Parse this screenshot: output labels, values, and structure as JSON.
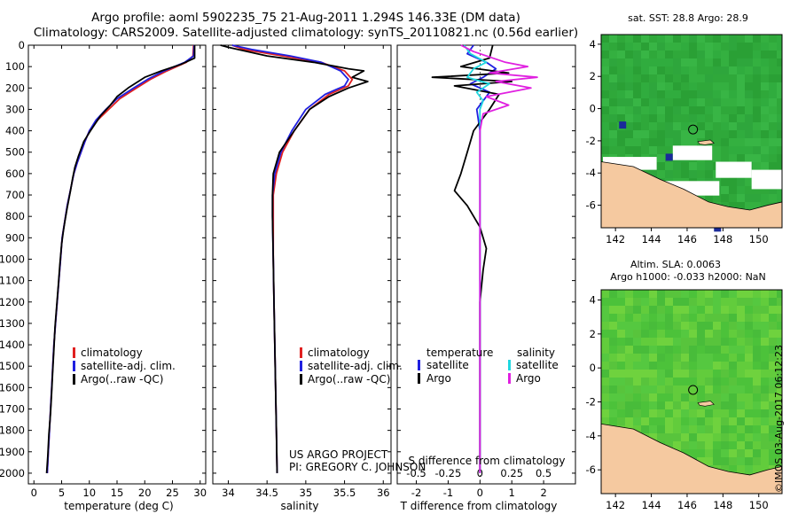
{
  "header": {
    "line1": "Argo profile: aoml 5902235_75 21-Aug-2011 1.294S 146.33E (DM data)",
    "line2": "Climatology: CARS2009. Satellite-adjusted climatology: synTS_20110821.nc (0.56d earlier)"
  },
  "colors": {
    "climatology": "#e02020",
    "satellite": "#2020e0",
    "argo": "#000000",
    "salinity_satellite": "#20d8e0",
    "salinity_argo": "#e020e0",
    "land": "#f5c9a0",
    "sea_green": "#2fb02f",
    "missing": "#ffffff"
  },
  "depth_axis": {
    "ticks": [
      0,
      100,
      200,
      300,
      400,
      500,
      600,
      700,
      800,
      900,
      1000,
      1100,
      1200,
      1300,
      1400,
      1500,
      1600,
      1700,
      1800,
      1900,
      2000
    ]
  },
  "chart_data": [
    {
      "type": "line",
      "name": "temperature",
      "xlabel": "temperature (deg C)",
      "xlim": [
        -1,
        31
      ],
      "ylim": [
        0,
        2050
      ],
      "xticks": [
        0,
        5,
        10,
        15,
        20,
        25,
        30
      ],
      "legend": [
        "climatology",
        "satellite-adj. clim.",
        "Argo(..raw -QC)"
      ],
      "series": [
        {
          "name": "climatology",
          "color": "#e02020",
          "points": [
            [
              28.8,
              0
            ],
            [
              28.7,
              50
            ],
            [
              27.5,
              80
            ],
            [
              24.0,
              120
            ],
            [
              21.0,
              160
            ],
            [
              18.5,
              200
            ],
            [
              15.5,
              250
            ],
            [
              13.5,
              300
            ],
            [
              11.5,
              350
            ],
            [
              10.0,
              400
            ],
            [
              9.2,
              450
            ],
            [
              8.5,
              500
            ],
            [
              7.8,
              550
            ],
            [
              7.2,
              600
            ],
            [
              6.8,
              650
            ],
            [
              6.4,
              700
            ],
            [
              6.0,
              750
            ],
            [
              5.7,
              800
            ],
            [
              5.4,
              850
            ],
            [
              5.1,
              900
            ],
            [
              4.8,
              1000
            ],
            [
              4.5,
              1100
            ],
            [
              4.2,
              1200
            ],
            [
              3.9,
              1300
            ],
            [
              3.6,
              1400
            ],
            [
              3.4,
              1500
            ],
            [
              3.2,
              1600
            ],
            [
              3.0,
              1700
            ],
            [
              2.8,
              1800
            ],
            [
              2.6,
              1900
            ],
            [
              2.4,
              2000
            ]
          ]
        },
        {
          "name": "satellite",
          "color": "#2020e0",
          "points": [
            [
              28.9,
              0
            ],
            [
              28.8,
              50
            ],
            [
              27.2,
              80
            ],
            [
              23.5,
              120
            ],
            [
              20.5,
              160
            ],
            [
              18.0,
              200
            ],
            [
              15.0,
              250
            ],
            [
              13.0,
              300
            ],
            [
              11.2,
              350
            ],
            [
              10.0,
              400
            ],
            [
              9.2,
              450
            ],
            [
              8.5,
              500
            ],
            [
              7.8,
              550
            ],
            [
              7.2,
              600
            ],
            [
              6.8,
              650
            ],
            [
              6.4,
              700
            ],
            [
              6.0,
              750
            ],
            [
              5.7,
              800
            ],
            [
              5.4,
              850
            ],
            [
              5.1,
              900
            ],
            [
              4.8,
              1000
            ],
            [
              4.5,
              1100
            ],
            [
              4.2,
              1200
            ],
            [
              3.9,
              1300
            ],
            [
              3.6,
              1400
            ],
            [
              3.4,
              1500
            ],
            [
              3.2,
              1600
            ],
            [
              3.0,
              1700
            ],
            [
              2.8,
              1800
            ],
            [
              2.6,
              1900
            ],
            [
              2.4,
              2000
            ]
          ]
        },
        {
          "name": "Argo",
          "color": "#000000",
          "points": [
            [
              29.0,
              0
            ],
            [
              29.0,
              60
            ],
            [
              26.5,
              90
            ],
            [
              23.0,
              120
            ],
            [
              20.0,
              150
            ],
            [
              17.0,
              200
            ],
            [
              15.0,
              240
            ],
            [
              13.8,
              280
            ],
            [
              12.0,
              330
            ],
            [
              10.2,
              400
            ],
            [
              9.0,
              450
            ],
            [
              8.0,
              520
            ],
            [
              7.4,
              570
            ],
            [
              7.0,
              620
            ],
            [
              6.6,
              680
            ],
            [
              6.0,
              760
            ],
            [
              5.6,
              820
            ],
            [
              5.3,
              870
            ],
            [
              5.0,
              930
            ],
            [
              4.7,
              1020
            ],
            [
              4.4,
              1120
            ],
            [
              4.1,
              1220
            ],
            [
              3.8,
              1320
            ],
            [
              3.6,
              1420
            ],
            [
              3.4,
              1520
            ],
            [
              3.2,
              1620
            ],
            [
              3.0,
              1720
            ],
            [
              2.7,
              1820
            ],
            [
              2.5,
              1920
            ],
            [
              2.3,
              2000
            ]
          ]
        }
      ]
    },
    {
      "type": "line",
      "name": "salinity",
      "xlabel": "salinity",
      "xlim": [
        33.8,
        36.1
      ],
      "ylim": [
        0,
        2050
      ],
      "xticks": [
        34,
        34.5,
        35,
        35.5,
        36
      ],
      "legend": [
        "climatology",
        "satellite-adj. clim.",
        "Argo(..raw -QC)"
      ],
      "credit": [
        "US ARGO PROJECT",
        "PI: GREGORY C. JOHNSON"
      ],
      "series": [
        {
          "name": "climatology",
          "color": "#e02020",
          "points": [
            [
              34.05,
              0
            ],
            [
              34.2,
              20
            ],
            [
              34.7,
              50
            ],
            [
              35.2,
              80
            ],
            [
              35.5,
              120
            ],
            [
              35.6,
              160
            ],
            [
              35.55,
              190
            ],
            [
              35.3,
              230
            ],
            [
              35.05,
              300
            ],
            [
              34.85,
              400
            ],
            [
              34.7,
              500
            ],
            [
              34.62,
              600
            ],
            [
              34.58,
              700
            ],
            [
              34.58,
              800
            ],
            [
              34.58,
              1000
            ],
            [
              34.59,
              1200
            ],
            [
              34.6,
              1400
            ],
            [
              34.61,
              1600
            ],
            [
              34.62,
              1800
            ],
            [
              34.63,
              2000
            ]
          ]
        },
        {
          "name": "satellite",
          "color": "#2020e0",
          "points": [
            [
              34.05,
              0
            ],
            [
              34.3,
              20
            ],
            [
              34.8,
              50
            ],
            [
              35.2,
              80
            ],
            [
              35.45,
              120
            ],
            [
              35.55,
              160
            ],
            [
              35.5,
              190
            ],
            [
              35.25,
              230
            ],
            [
              35.0,
              300
            ],
            [
              34.82,
              400
            ],
            [
              34.68,
              500
            ],
            [
              34.6,
              600
            ],
            [
              34.57,
              700
            ],
            [
              34.57,
              800
            ],
            [
              34.58,
              1000
            ],
            [
              34.59,
              1200
            ],
            [
              34.6,
              1400
            ],
            [
              34.61,
              1600
            ],
            [
              34.62,
              1800
            ],
            [
              34.63,
              2000
            ]
          ]
        },
        {
          "name": "Argo",
          "color": "#000000",
          "points": [
            [
              33.9,
              0
            ],
            [
              34.0,
              10
            ],
            [
              34.5,
              50
            ],
            [
              35.1,
              80
            ],
            [
              35.55,
              110
            ],
            [
              35.75,
              120
            ],
            [
              35.6,
              150
            ],
            [
              35.8,
              170
            ],
            [
              35.55,
              200
            ],
            [
              35.3,
              240
            ],
            [
              35.05,
              300
            ],
            [
              34.85,
              400
            ],
            [
              34.66,
              500
            ],
            [
              34.58,
              600
            ],
            [
              34.57,
              700
            ],
            [
              34.57,
              800
            ],
            [
              34.58,
              1000
            ],
            [
              34.59,
              1200
            ],
            [
              34.6,
              1400
            ],
            [
              34.61,
              1600
            ],
            [
              34.62,
              1800
            ],
            [
              34.63,
              2000
            ]
          ]
        }
      ]
    },
    {
      "type": "line",
      "name": "difference",
      "xlabel_top": "S difference from climatology",
      "xlabel_bottom": "T difference from climatology",
      "xlim": [
        -2.6,
        3.0
      ],
      "ylim": [
        0,
        2050
      ],
      "xticks_T": [
        -2,
        -1,
        0,
        1,
        2
      ],
      "xticks_S": [
        -0.5,
        -0.25,
        0,
        0.25,
        0.5
      ],
      "legend_temperature": [
        "temperature",
        "satellite",
        "Argo"
      ],
      "legend_salinity": [
        "salinity",
        "satellite",
        "Argo"
      ],
      "series": [
        {
          "name": "T satellite",
          "color": "#2020e0",
          "points": [
            [
              -0.2,
              0
            ],
            [
              -0.4,
              40
            ],
            [
              0.2,
              80
            ],
            [
              0.5,
              110
            ],
            [
              0.1,
              150
            ],
            [
              -0.3,
              180
            ],
            [
              0.3,
              220
            ],
            [
              0.1,
              260
            ],
            [
              -0.1,
              300
            ],
            [
              0.0,
              400
            ],
            [
              0.0,
              600
            ],
            [
              0.0,
              1000
            ],
            [
              0.0,
              1500
            ],
            [
              0.0,
              2000
            ]
          ]
        },
        {
          "name": "T Argo",
          "color": "#000000",
          "points": [
            [
              0.4,
              0
            ],
            [
              0.3,
              60
            ],
            [
              -0.6,
              100
            ],
            [
              0.9,
              130
            ],
            [
              -1.5,
              150
            ],
            [
              1.0,
              170
            ],
            [
              -0.8,
              190
            ],
            [
              0.6,
              230
            ],
            [
              0.3,
              300
            ],
            [
              -0.2,
              400
            ],
            [
              -0.4,
              500
            ],
            [
              -0.6,
              600
            ],
            [
              -0.8,
              680
            ],
            [
              -0.4,
              750
            ],
            [
              0.0,
              850
            ],
            [
              0.2,
              950
            ],
            [
              0.1,
              1050
            ],
            [
              0.0,
              1200
            ],
            [
              0.0,
              1600
            ],
            [
              0.0,
              2000
            ]
          ]
        },
        {
          "name": "S satellite",
          "color": "#20d8e0",
          "points": [
            [
              -0.5,
              0
            ],
            [
              -0.3,
              40
            ],
            [
              0.2,
              80
            ],
            [
              -0.2,
              110
            ],
            [
              -0.4,
              150
            ],
            [
              0.3,
              180
            ],
            [
              -0.1,
              220
            ],
            [
              0.1,
              260
            ],
            [
              0.0,
              300
            ],
            [
              0.0,
              500
            ],
            [
              0.0,
              1000
            ],
            [
              0.0,
              1500
            ],
            [
              0.0,
              2000
            ]
          ]
        },
        {
          "name": "S Argo",
          "color": "#e020e0",
          "points": [
            [
              -0.6,
              0
            ],
            [
              -0.2,
              30
            ],
            [
              0.8,
              80
            ],
            [
              1.5,
              100
            ],
            [
              0.3,
              130
            ],
            [
              1.8,
              150
            ],
            [
              0.5,
              170
            ],
            [
              1.6,
              200
            ],
            [
              0.2,
              240
            ],
            [
              0.9,
              280
            ],
            [
              0.1,
              320
            ],
            [
              0.0,
              400
            ],
            [
              0.0,
              600
            ],
            [
              0.0,
              1000
            ],
            [
              0.0,
              1500
            ],
            [
              0.0,
              2000
            ]
          ]
        }
      ]
    },
    {
      "type": "heatmap",
      "name": "sst_map",
      "title": "sat. SST: 28.8 Argo: 28.9",
      "xticks": [
        142,
        144,
        146,
        148,
        150
      ],
      "yticks": [
        4,
        2,
        0,
        -2,
        -4,
        -6
      ],
      "xlim": [
        141.2,
        151.3
      ],
      "ylim": [
        -7.4,
        4.6
      ],
      "argo_position": [
        146.33,
        -1.294
      ]
    },
    {
      "type": "heatmap",
      "name": "sla_map",
      "title_line1": "Altim. SLA: 0.0063",
      "title_line2": "Argo h1000: -0.033 h2000: NaN",
      "xticks": [
        142,
        144,
        146,
        148,
        150
      ],
      "yticks": [
        4,
        2,
        0,
        -2,
        -4,
        -6
      ],
      "xlim": [
        141.2,
        151.3
      ],
      "ylim": [
        -7.4,
        4.6
      ],
      "argo_position": [
        146.33,
        -1.294
      ]
    }
  ],
  "footer": {
    "imos": "©IMOS 03-Aug-2017 06:12:23"
  }
}
